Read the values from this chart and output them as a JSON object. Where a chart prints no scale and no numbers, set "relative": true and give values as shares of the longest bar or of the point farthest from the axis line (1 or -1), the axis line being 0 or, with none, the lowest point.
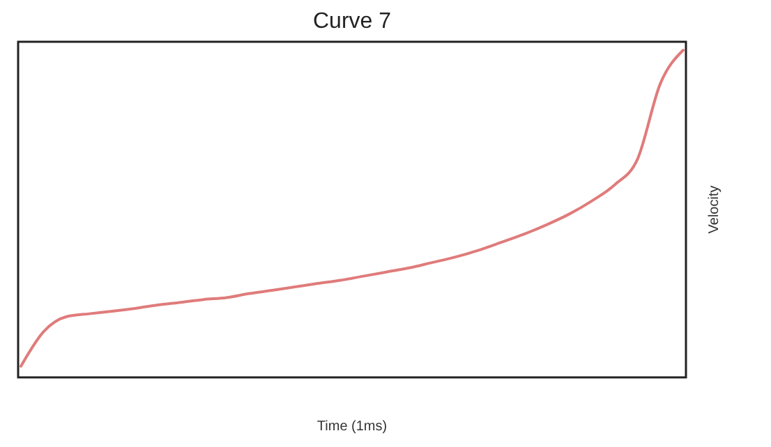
{
  "chart_data": {
    "type": "line",
    "title": "Curve 7",
    "xlabel": "Time (1ms)",
    "ylabel": "Velocity",
    "relative": true,
    "categories": [
      null,
      null,
      null,
      null,
      null,
      null,
      null,
      null,
      null,
      null,
      null,
      null,
      null,
      null,
      null,
      null,
      null,
      null,
      null,
      null,
      null,
      null,
      null,
      null,
      null,
      null,
      null,
      null,
      null,
      null
    ],
    "series": [
      {
        "color": "#e07b7b",
        "values": [
          0,
          0.11,
          0.157,
          0.166,
          0.174,
          0.183,
          0.194,
          0.202,
          0.211,
          0.217,
          0.23,
          0.24,
          0.251,
          0.262,
          0.272,
          0.285,
          0.298,
          0.311,
          0.328,
          0.345,
          0.366,
          0.391,
          0.417,
          0.447,
          0.481,
          0.523,
          0.574,
          0.655,
          0.894,
          1
        ]
      }
    ]
  }
}
